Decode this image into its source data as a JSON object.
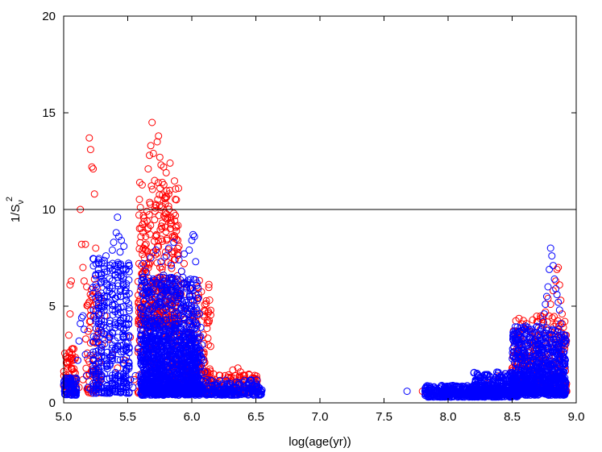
{
  "chart_data": {
    "type": "scatter",
    "xlabel": "log(age(yr))",
    "ylabel": {
      "base": "1/S",
      "subscript": "ν",
      "superscript": "2"
    },
    "xlim": [
      5.0,
      9.0
    ],
    "ylim": [
      0,
      20
    ],
    "x_ticks": [
      "5.0",
      "5.5",
      "6.0",
      "6.5",
      "7.0",
      "7.5",
      "8.0",
      "8.5",
      "9.0"
    ],
    "y_ticks": [
      "0",
      "5",
      "10",
      "15",
      "20"
    ],
    "grid": false,
    "legend": "none",
    "marker": "open-circle",
    "reference_lines": [
      {
        "axis": "y",
        "value": 10,
        "color": "#000000"
      }
    ],
    "series": [
      {
        "color": "#ff0000",
        "points": [
          [
            5.02,
            0.9
          ],
          [
            5.03,
            2.0
          ],
          [
            5.04,
            3.5
          ],
          [
            5.05,
            4.6
          ],
          [
            5.05,
            6.1
          ],
          [
            5.06,
            6.3
          ],
          [
            5.07,
            2.8
          ],
          [
            5.08,
            1.6
          ],
          [
            5.09,
            1.1
          ],
          [
            5.1,
            0.8
          ],
          [
            5.13,
            10.0
          ],
          [
            5.14,
            8.2
          ],
          [
            5.15,
            7.0
          ],
          [
            5.16,
            6.3
          ],
          [
            5.17,
            8.2
          ],
          [
            5.18,
            6.0
          ],
          [
            5.19,
            3.7
          ],
          [
            5.2,
            13.7
          ],
          [
            5.21,
            13.1
          ],
          [
            5.22,
            12.2
          ],
          [
            5.23,
            12.1
          ],
          [
            5.24,
            10.8
          ],
          [
            5.25,
            8.0
          ],
          [
            5.24,
            6.4
          ],
          [
            5.22,
            5.5
          ],
          [
            5.21,
            3.1
          ],
          [
            5.2,
            1.5
          ],
          [
            5.19,
            0.7
          ],
          [
            5.15,
            1.2
          ],
          [
            5.12,
            0.8
          ],
          [
            5.28,
            2.1
          ],
          [
            5.3,
            3.0
          ],
          [
            5.32,
            4.5
          ],
          [
            5.35,
            3.3
          ],
          [
            5.38,
            2.5
          ],
          [
            5.42,
            1.8
          ],
          [
            5.48,
            2.2
          ],
          [
            5.52,
            3.4
          ],
          [
            5.55,
            1.2
          ],
          [
            5.58,
            0.6
          ],
          [
            5.6,
            3.8
          ],
          [
            5.61,
            4.9
          ],
          [
            5.62,
            6.5
          ],
          [
            5.63,
            7.5
          ],
          [
            5.64,
            8.6
          ],
          [
            5.65,
            9.4
          ],
          [
            5.66,
            12.1
          ],
          [
            5.67,
            12.8
          ],
          [
            5.68,
            13.3
          ],
          [
            5.69,
            14.5
          ],
          [
            5.7,
            12.9
          ],
          [
            5.71,
            11.5
          ],
          [
            5.72,
            10.2
          ],
          [
            5.73,
            13.5
          ],
          [
            5.74,
            13.8
          ],
          [
            5.75,
            12.7
          ],
          [
            5.76,
            12.3
          ],
          [
            5.77,
            11.4
          ],
          [
            5.78,
            12.2
          ],
          [
            5.79,
            10.6
          ],
          [
            5.8,
            11.9
          ],
          [
            5.81,
            9.5
          ],
          [
            5.82,
            10.8
          ],
          [
            5.83,
            12.4
          ],
          [
            5.84,
            9.3
          ],
          [
            5.85,
            8.6
          ],
          [
            5.86,
            9.8
          ],
          [
            5.87,
            7.4
          ],
          [
            5.88,
            10.5
          ],
          [
            5.9,
            8.1
          ],
          [
            5.92,
            6.8
          ],
          [
            5.94,
            7.2
          ],
          [
            5.96,
            6.0
          ],
          [
            5.98,
            5.5
          ],
          [
            6.0,
            4.9
          ],
          [
            6.02,
            5.3
          ],
          [
            6.04,
            4.1
          ],
          [
            6.06,
            3.4
          ],
          [
            6.08,
            2.6
          ],
          [
            6.1,
            2.1
          ],
          [
            6.12,
            1.5
          ],
          [
            6.15,
            1.1
          ],
          [
            6.18,
            0.9
          ],
          [
            6.22,
            0.8
          ],
          [
            6.28,
            1.3
          ],
          [
            6.32,
            1.7
          ],
          [
            6.34,
            1.4
          ],
          [
            6.36,
            1.8
          ],
          [
            6.38,
            1.6
          ],
          [
            6.4,
            1.2
          ],
          [
            6.44,
            0.9
          ],
          [
            6.48,
            0.8
          ],
          [
            6.5,
            0.7
          ],
          [
            7.8,
            0.6
          ],
          [
            8.3,
            1.0
          ],
          [
            8.35,
            1.2
          ],
          [
            8.4,
            1.4
          ],
          [
            8.45,
            1.5
          ],
          [
            8.5,
            1.8
          ],
          [
            8.55,
            2.1
          ],
          [
            8.6,
            2.4
          ],
          [
            8.62,
            2.9
          ],
          [
            8.64,
            3.1
          ],
          [
            8.66,
            3.3
          ],
          [
            8.68,
            3.6
          ],
          [
            8.7,
            3.2
          ],
          [
            8.72,
            3.8
          ],
          [
            8.74,
            4.3
          ],
          [
            8.76,
            4.7
          ],
          [
            8.78,
            5.4
          ],
          [
            8.8,
            5.1
          ],
          [
            8.82,
            5.8
          ],
          [
            8.84,
            6.3
          ],
          [
            8.85,
            6.9
          ],
          [
            8.86,
            7.0
          ],
          [
            8.87,
            6.1
          ],
          [
            8.88,
            5.3
          ],
          [
            8.89,
            4.6
          ],
          [
            8.9,
            3.9
          ],
          [
            8.91,
            2.8
          ],
          [
            8.91,
            1.9
          ],
          [
            8.9,
            1.2
          ],
          [
            8.88,
            0.9
          ]
        ]
      },
      {
        "color": "#0000ff",
        "points": [
          [
            5.01,
            0.6
          ],
          [
            5.02,
            1.0
          ],
          [
            5.04,
            0.8
          ],
          [
            5.06,
            0.7
          ],
          [
            5.08,
            0.9
          ],
          [
            5.1,
            1.2
          ],
          [
            5.11,
            2.2
          ],
          [
            5.12,
            3.2
          ],
          [
            5.13,
            4.1
          ],
          [
            5.14,
            4.4
          ],
          [
            5.15,
            4.5
          ],
          [
            5.16,
            3.8
          ],
          [
            5.17,
            2.5
          ],
          [
            5.18,
            1.4
          ],
          [
            5.19,
            0.8
          ],
          [
            5.21,
            0.7
          ],
          [
            5.23,
            1.0
          ],
          [
            5.25,
            2.0
          ],
          [
            5.26,
            3.3
          ],
          [
            5.27,
            4.6
          ],
          [
            5.28,
            5.4
          ],
          [
            5.29,
            6.2
          ],
          [
            5.3,
            5.0
          ],
          [
            5.31,
            3.6
          ],
          [
            5.32,
            7.2
          ],
          [
            5.33,
            7.6
          ],
          [
            5.34,
            6.8
          ],
          [
            5.35,
            5.2
          ],
          [
            5.36,
            3.9
          ],
          [
            5.37,
            2.4
          ],
          [
            5.38,
            7.9
          ],
          [
            5.39,
            8.3
          ],
          [
            5.4,
            7.1
          ],
          [
            5.41,
            8.8
          ],
          [
            5.42,
            9.6
          ],
          [
            5.43,
            8.6
          ],
          [
            5.44,
            7.8
          ],
          [
            5.45,
            8.4
          ],
          [
            5.46,
            6.9
          ],
          [
            5.47,
            8.1
          ],
          [
            5.48,
            5.8
          ],
          [
            5.49,
            4.4
          ],
          [
            5.5,
            3.1
          ],
          [
            5.51,
            1.9
          ],
          [
            5.52,
            1.2
          ],
          [
            5.54,
            0.8
          ],
          [
            5.56,
            1.4
          ],
          [
            5.58,
            2.8
          ],
          [
            5.6,
            4.9
          ],
          [
            5.61,
            6.3
          ],
          [
            5.62,
            7.2
          ],
          [
            5.64,
            6.8
          ],
          [
            5.66,
            5.7
          ],
          [
            5.68,
            7.5
          ],
          [
            5.7,
            6.4
          ],
          [
            5.72,
            7.9
          ],
          [
            5.74,
            5.1
          ],
          [
            5.76,
            7.3
          ],
          [
            5.78,
            6.6
          ],
          [
            5.8,
            7.6
          ],
          [
            5.82,
            8.0
          ],
          [
            5.84,
            7.1
          ],
          [
            5.86,
            8.3
          ],
          [
            5.88,
            6.2
          ],
          [
            5.9,
            7.4
          ],
          [
            5.92,
            6.8
          ],
          [
            5.94,
            7.7
          ],
          [
            5.96,
            6.1
          ],
          [
            5.98,
            7.9
          ],
          [
            6.0,
            8.4
          ],
          [
            6.01,
            8.7
          ],
          [
            6.02,
            8.6
          ],
          [
            6.03,
            7.3
          ],
          [
            6.04,
            6.2
          ],
          [
            6.05,
            5.4
          ],
          [
            6.06,
            4.6
          ],
          [
            6.07,
            3.9
          ],
          [
            6.08,
            3.0
          ],
          [
            6.09,
            2.2
          ],
          [
            6.1,
            1.6
          ],
          [
            5.65,
            3.2
          ],
          [
            5.7,
            2.5
          ],
          [
            5.75,
            3.6
          ],
          [
            5.8,
            2.9
          ],
          [
            5.85,
            3.3
          ],
          [
            5.9,
            4.1
          ],
          [
            5.95,
            3.4
          ],
          [
            6.0,
            2.7
          ],
          [
            5.72,
            1.8
          ],
          [
            5.82,
            1.4
          ],
          [
            5.92,
            1.9
          ],
          [
            6.02,
            1.3
          ],
          [
            5.68,
            0.9
          ],
          [
            5.78,
            0.7
          ],
          [
            5.88,
            0.8
          ],
          [
            5.98,
            0.6
          ],
          [
            6.12,
            1.2
          ],
          [
            6.16,
            0.9
          ],
          [
            6.2,
            0.8
          ],
          [
            6.25,
            0.7
          ],
          [
            6.3,
            0.7
          ],
          [
            6.35,
            0.8
          ],
          [
            6.4,
            0.6
          ],
          [
            6.45,
            0.7
          ],
          [
            6.5,
            0.7
          ],
          [
            6.52,
            0.8
          ],
          [
            7.68,
            0.6
          ],
          [
            7.82,
            0.6
          ],
          [
            7.9,
            0.5
          ],
          [
            8.0,
            0.6
          ],
          [
            8.1,
            0.6
          ],
          [
            8.2,
            0.7
          ],
          [
            8.25,
            0.8
          ],
          [
            8.3,
            0.9
          ],
          [
            8.35,
            1.0
          ],
          [
            8.4,
            1.1
          ],
          [
            8.45,
            1.3
          ],
          [
            8.5,
            1.5
          ],
          [
            8.55,
            1.8
          ],
          [
            8.58,
            2.2
          ],
          [
            8.6,
            2.6
          ],
          [
            8.62,
            3.1
          ],
          [
            8.64,
            3.4
          ],
          [
            8.66,
            3.6
          ],
          [
            8.68,
            3.2
          ],
          [
            8.7,
            3.0
          ],
          [
            8.72,
            3.7
          ],
          [
            8.74,
            4.2
          ],
          [
            8.75,
            4.6
          ],
          [
            8.76,
            5.1
          ],
          [
            8.77,
            5.5
          ],
          [
            8.78,
            6.0
          ],
          [
            8.79,
            6.9
          ],
          [
            8.8,
            8.0
          ],
          [
            8.81,
            7.6
          ],
          [
            8.82,
            7.1
          ],
          [
            8.83,
            6.4
          ],
          [
            8.84,
            5.9
          ],
          [
            8.85,
            5.6
          ],
          [
            8.86,
            5.2
          ],
          [
            8.87,
            4.8
          ],
          [
            8.88,
            4.1
          ],
          [
            8.89,
            3.3
          ],
          [
            8.9,
            2.4
          ],
          [
            8.9,
            1.6
          ],
          [
            8.88,
            1.0
          ]
        ]
      }
    ],
    "dense_regions": [
      {
        "color": "#ff0000",
        "x": [
          5.0,
          5.1
        ],
        "y": [
          0.5,
          2.8
        ],
        "count": 70,
        "mode": "random"
      },
      {
        "color": "#ff0000",
        "x": [
          5.17,
          5.3
        ],
        "y": [
          0.5,
          6.0
        ],
        "count": 70,
        "mode": "random"
      },
      {
        "color": "#ff0000",
        "x": [
          5.58,
          5.9
        ],
        "y": [
          4.0,
          11.5
        ],
        "count": 300,
        "mode": "random"
      },
      {
        "color": "#ff0000",
        "x": [
          5.58,
          6.15
        ],
        "y": [
          0.5,
          6.5
        ],
        "count": 350,
        "mode": "random"
      },
      {
        "color": "#ff0000",
        "x": [
          6.1,
          6.52
        ],
        "y": [
          0.5,
          1.5
        ],
        "count": 120,
        "mode": "random"
      },
      {
        "color": "#ff0000",
        "x": [
          8.5,
          8.93
        ],
        "y": [
          0.5,
          4.5
        ],
        "count": 250,
        "mode": "random"
      },
      {
        "color": "#0000ff",
        "x": [
          5.0,
          5.1
        ],
        "y": [
          0.4,
          1.3
        ],
        "count": 70,
        "mode": "random"
      },
      {
        "color": "#0000ff",
        "x": [
          5.22,
          5.52
        ],
        "y": [
          0.5,
          7.5
        ],
        "count": 380,
        "mode": "columns"
      },
      {
        "color": "#0000ff",
        "x": [
          5.6,
          6.05
        ],
        "y": [
          0.4,
          6.5
        ],
        "count": 900,
        "mode": "random"
      },
      {
        "color": "#0000ff",
        "x": [
          5.62,
          6.08
        ],
        "y": [
          0.5,
          3.5
        ],
        "count": 500,
        "mode": "random"
      },
      {
        "color": "#0000ff",
        "x": [
          6.05,
          6.55
        ],
        "y": [
          0.4,
          1.2
        ],
        "count": 200,
        "mode": "random"
      },
      {
        "color": "#0000ff",
        "x": [
          7.82,
          8.55
        ],
        "y": [
          0.3,
          0.9
        ],
        "count": 500,
        "mode": "random"
      },
      {
        "color": "#0000ff",
        "x": [
          8.2,
          8.92
        ],
        "y": [
          0.4,
          1.6
        ],
        "count": 400,
        "mode": "random"
      },
      {
        "color": "#0000ff",
        "x": [
          8.5,
          8.92
        ],
        "y": [
          0.5,
          4.0
        ],
        "count": 600,
        "mode": "random"
      }
    ]
  }
}
